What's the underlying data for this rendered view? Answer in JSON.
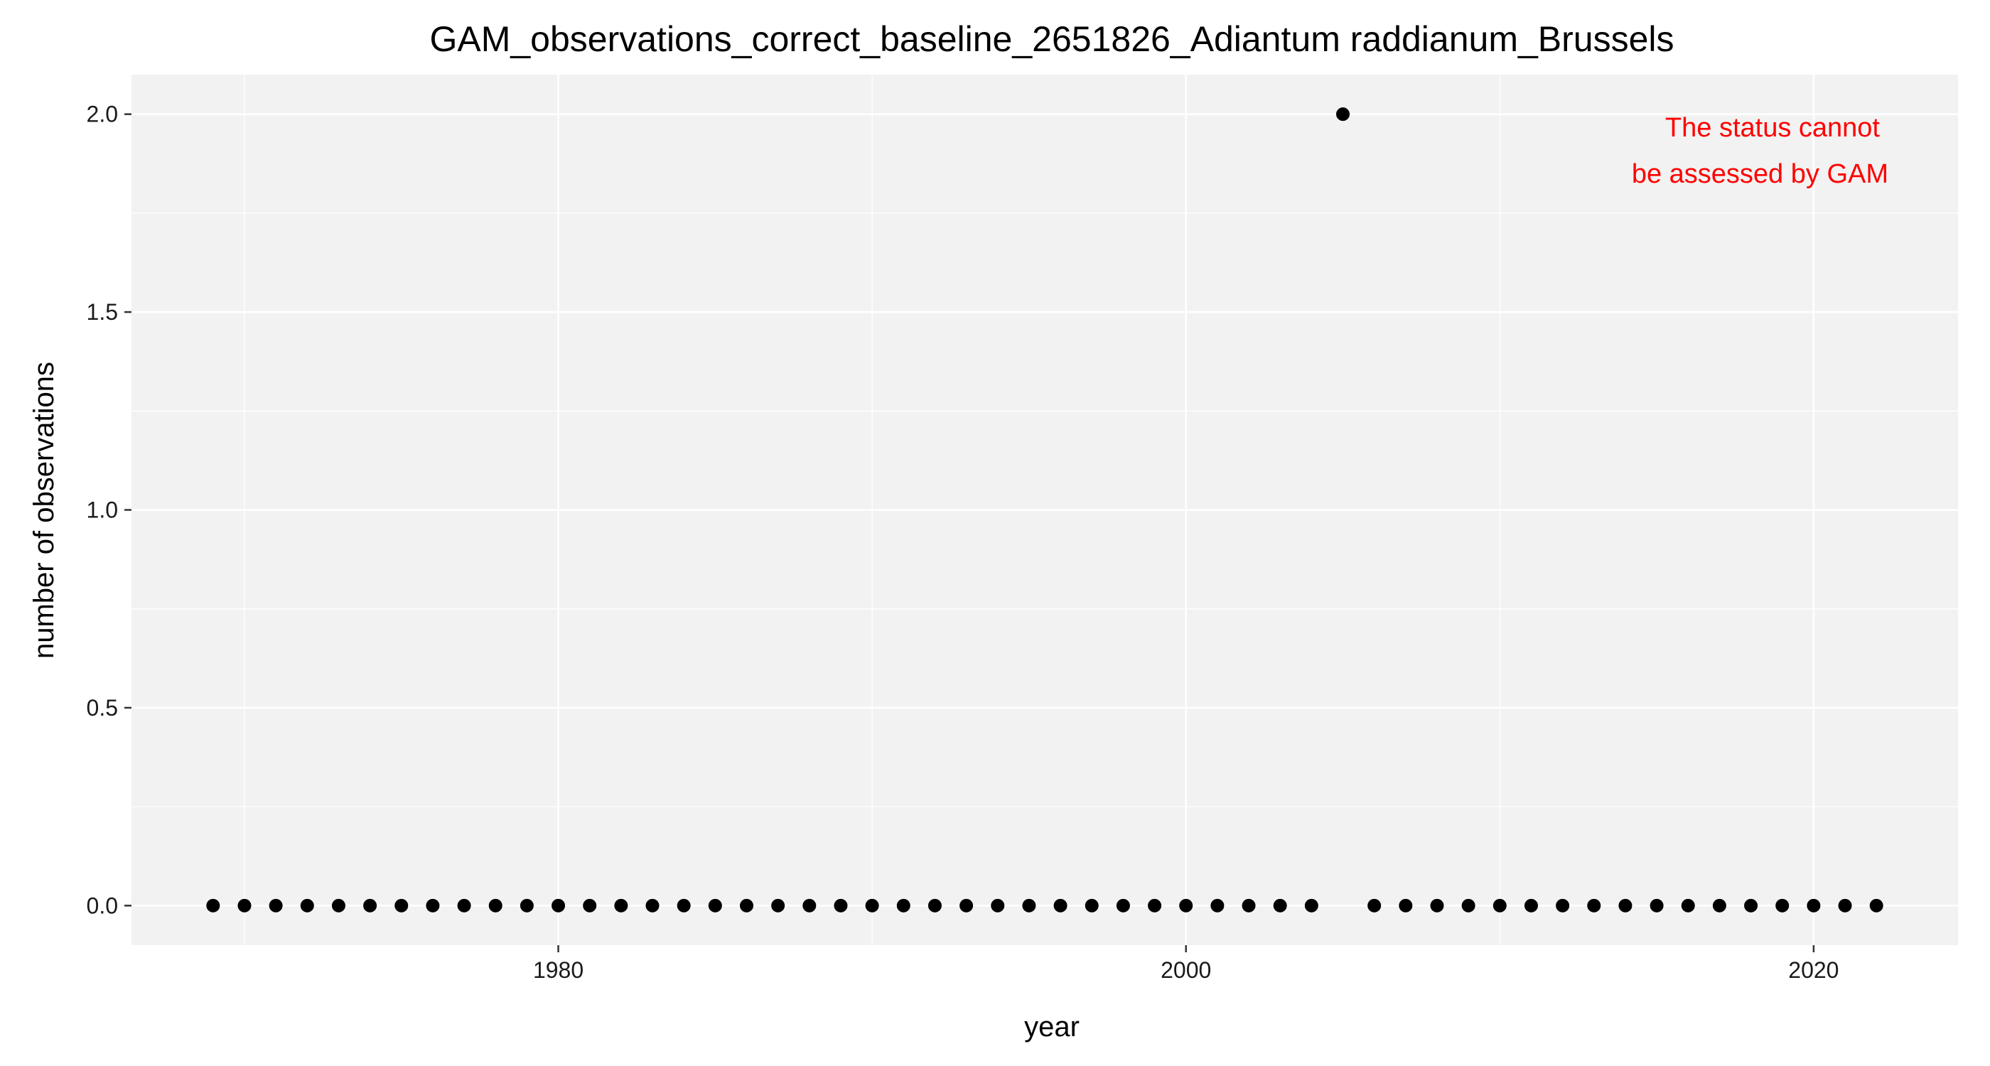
{
  "chart_data": {
    "type": "scatter",
    "title": "GAM_observations_correct_baseline_2651826_Adiantum raddianum_Brussels",
    "xlabel": "year",
    "ylabel": "number of observations",
    "xlim": [
      1966.4,
      2024.6
    ],
    "ylim": [
      -0.1,
      2.1
    ],
    "x_ticks": [
      1980,
      2000,
      2020
    ],
    "x_tick_labels": [
      "1980",
      "2000",
      "2020"
    ],
    "y_ticks": [
      0.0,
      0.5,
      1.0,
      1.5,
      2.0
    ],
    "y_tick_labels": [
      "0.0",
      "0.5",
      "1.0",
      "1.5",
      "2.0"
    ],
    "grid": true,
    "series": [
      {
        "x": [
          1969,
          1970,
          1971,
          1972,
          1973,
          1974,
          1975,
          1976,
          1977,
          1978,
          1979,
          1980,
          1981,
          1982,
          1983,
          1984,
          1985,
          1986,
          1987,
          1988,
          1989,
          1990,
          1991,
          1992,
          1993,
          1994,
          1995,
          1996,
          1997,
          1998,
          1999,
          2000,
          2001,
          2002,
          2003,
          2004,
          2005,
          2006,
          2007,
          2008,
          2009,
          2010,
          2011,
          2012,
          2013,
          2014,
          2015,
          2016,
          2017,
          2018,
          2019,
          2020,
          2021,
          2022
        ],
        "y": [
          0,
          0,
          0,
          0,
          0,
          0,
          0,
          0,
          0,
          0,
          0,
          0,
          0,
          0,
          0,
          0,
          0,
          0,
          0,
          0,
          0,
          0,
          0,
          0,
          0,
          0,
          0,
          0,
          0,
          0,
          0,
          0,
          0,
          0,
          0,
          0,
          2,
          0,
          0,
          0,
          0,
          0,
          0,
          0,
          0,
          0,
          0,
          0,
          0,
          0,
          0,
          0,
          0,
          0
        ]
      }
    ],
    "annotation": {
      "lines": [
        "The status cannot",
        "be assessed by GAM"
      ],
      "color": "#ff0000",
      "placement": "top-right"
    },
    "colors": {
      "panel_background": "#f2f2f2",
      "grid": "#ffffff",
      "point": "#000000"
    }
  }
}
